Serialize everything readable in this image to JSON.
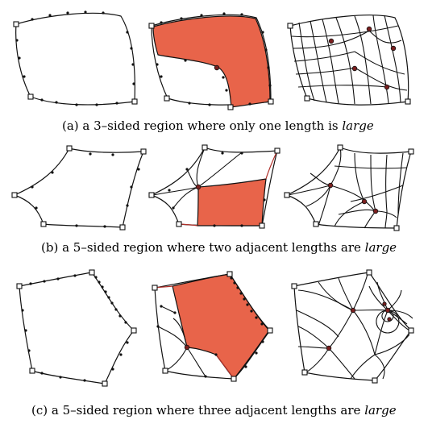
{
  "panels": [
    {
      "id": "a",
      "caption_prefix": "(a) a 3–sided region where only one length is ",
      "caption_emph": "large"
    },
    {
      "id": "b",
      "caption_prefix": "(b) a 5–sided region where two adjacent lengths are ",
      "caption_emph": "large"
    },
    {
      "id": "c",
      "caption_prefix": "(c) a 5–sided region where three adjacent lengths are ",
      "caption_emph": "large"
    }
  ],
  "colors": {
    "region_fill": "#e8644a",
    "singular_node": "#7a1f1f",
    "line": "#111111"
  }
}
